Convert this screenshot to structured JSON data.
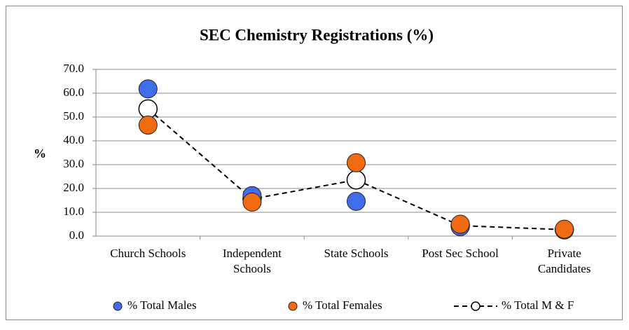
{
  "chart_data": {
    "type": "line",
    "title": "SEC Chemistry Registrations (%)",
    "y_label": "%",
    "categories": [
      "Church Schools",
      "Independent\nSchools",
      "State Schools",
      "Post Sec School",
      "Private\nCandidates"
    ],
    "series": [
      {
        "name": "% Total Males",
        "color": "#3f6ee8",
        "marker": "circle",
        "line": false,
        "values": [
          61.8,
          17.0,
          14.6,
          4.0,
          2.6
        ]
      },
      {
        "name": "% Total Females",
        "color": "#f06a10",
        "marker": "circle",
        "line": false,
        "values": [
          46.6,
          14.3,
          30.8,
          5.0,
          2.9
        ]
      },
      {
        "name": "% Total M & F",
        "color": "#ffffff",
        "marker": "circle",
        "line": true,
        "values": [
          53.4,
          15.6,
          23.6,
          4.4,
          2.7
        ]
      }
    ],
    "ylim": [
      0,
      70
    ],
    "yticks": [
      {
        "value": 0,
        "label": "0.0"
      },
      {
        "value": 10,
        "label": "10.0"
      },
      {
        "value": 20,
        "label": "20.0"
      },
      {
        "value": 30,
        "label": "30.0"
      },
      {
        "value": 40,
        "label": "40.0"
      },
      {
        "value": 50,
        "label": "50.0"
      },
      {
        "value": 60,
        "label": "60.0"
      },
      {
        "value": 70,
        "label": "70.0"
      }
    ],
    "grid": true,
    "legend": "bottom"
  }
}
